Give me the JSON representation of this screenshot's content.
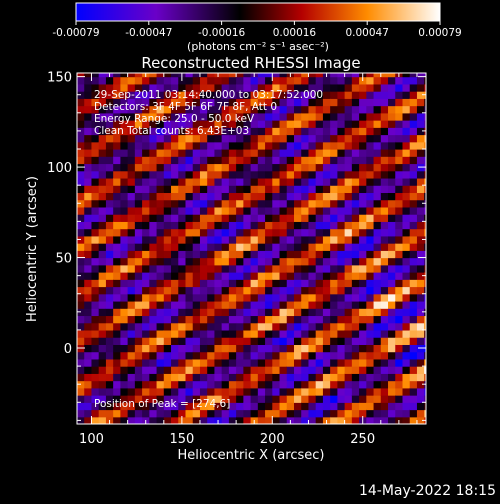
{
  "colorbar": {
    "tick_labels": [
      "-0.00079",
      "-0.00047",
      "-0.00016",
      "0.00016",
      "0.00047",
      "0.00079"
    ],
    "units": "(photons cm⁻² s⁻¹ asec⁻²)"
  },
  "info": {
    "line1": "29-Sep-2011 03:14:40.000 to 03:17:52.000",
    "line2": "Detectors: 3F 4F 5F 6F 7F 8F, Att 0",
    "line3": "Energy Range: 25.0 - 50.0 keV",
    "line4": "Clean     Total counts: 6.43E+03",
    "peak": "Position of Peak = [274,6]"
  },
  "timestamp": "14-May-2022 18:15",
  "chart_data": {
    "type": "heatmap",
    "title": "Reconstructed RHESSI Image",
    "xlabel": "Heliocentric X (arcsec)",
    "ylabel": "Heliocentric Y (arcsec)",
    "xlim": [
      92,
      285
    ],
    "ylim": [
      -42,
      152
    ],
    "x_ticks": [
      100,
      150,
      200,
      250
    ],
    "y_ticks": [
      0,
      50,
      100,
      150
    ],
    "colorbar_range": [
      -0.00079,
      0.00079
    ],
    "colormap": [
      "#0000ff",
      "#6a00c8",
      "#000000",
      "#b40000",
      "#ff8c00",
      "#ffffff"
    ],
    "grid": false,
    "stripe_angle_deg": 30,
    "stripe_period_arcsec": 22,
    "peak_position": [
      274,
      6
    ]
  }
}
